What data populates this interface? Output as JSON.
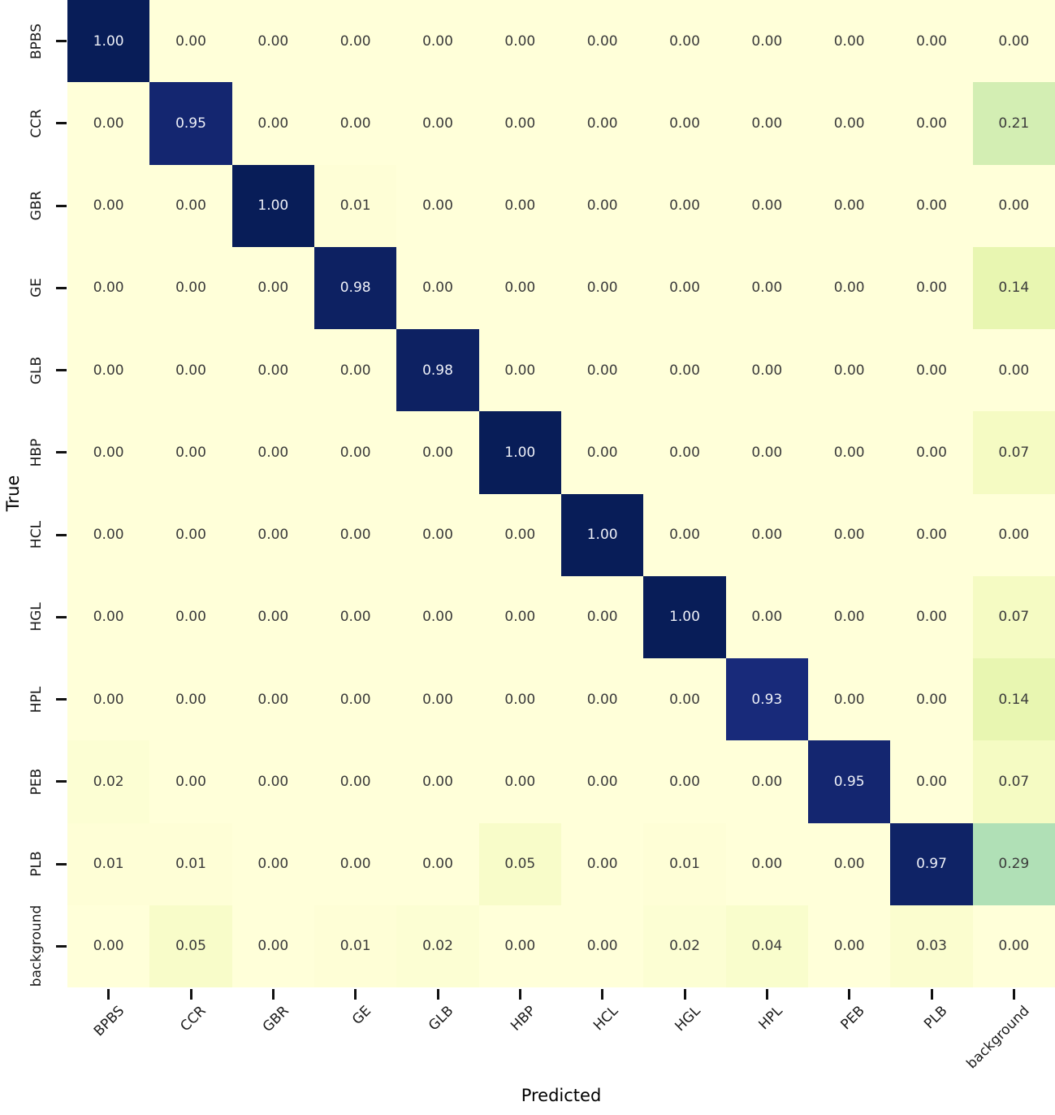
{
  "figure": {
    "kind": "confusion-matrix"
  },
  "chart_data": {
    "type": "heatmap",
    "title": "",
    "xlabel": "Predicted",
    "ylabel": "True",
    "x_categories": [
      "BPBS",
      "CCR",
      "GBR",
      "GE",
      "GLB",
      "HBP",
      "HCL",
      "HGL",
      "HPL",
      "PEB",
      "PLB",
      "background"
    ],
    "y_categories": [
      "BPBS",
      "CCR",
      "GBR",
      "GE",
      "GLB",
      "HBP",
      "HCL",
      "HGL",
      "HPL",
      "PEB",
      "PLB",
      "background"
    ],
    "matrix": [
      [
        1.0,
        0.0,
        0.0,
        0.0,
        0.0,
        0.0,
        0.0,
        0.0,
        0.0,
        0.0,
        0.0,
        0.0
      ],
      [
        0.0,
        0.95,
        0.0,
        0.0,
        0.0,
        0.0,
        0.0,
        0.0,
        0.0,
        0.0,
        0.0,
        0.21
      ],
      [
        0.0,
        0.0,
        1.0,
        0.01,
        0.0,
        0.0,
        0.0,
        0.0,
        0.0,
        0.0,
        0.0,
        0.0
      ],
      [
        0.0,
        0.0,
        0.0,
        0.98,
        0.0,
        0.0,
        0.0,
        0.0,
        0.0,
        0.0,
        0.0,
        0.14
      ],
      [
        0.0,
        0.0,
        0.0,
        0.0,
        0.98,
        0.0,
        0.0,
        0.0,
        0.0,
        0.0,
        0.0,
        0.0
      ],
      [
        0.0,
        0.0,
        0.0,
        0.0,
        0.0,
        1.0,
        0.0,
        0.0,
        0.0,
        0.0,
        0.0,
        0.07
      ],
      [
        0.0,
        0.0,
        0.0,
        0.0,
        0.0,
        0.0,
        1.0,
        0.0,
        0.0,
        0.0,
        0.0,
        0.0
      ],
      [
        0.0,
        0.0,
        0.0,
        0.0,
        0.0,
        0.0,
        0.0,
        1.0,
        0.0,
        0.0,
        0.0,
        0.07
      ],
      [
        0.0,
        0.0,
        0.0,
        0.0,
        0.0,
        0.0,
        0.0,
        0.0,
        0.93,
        0.0,
        0.0,
        0.14
      ],
      [
        0.02,
        0.0,
        0.0,
        0.0,
        0.0,
        0.0,
        0.0,
        0.0,
        0.0,
        0.95,
        0.0,
        0.07
      ],
      [
        0.01,
        0.01,
        0.0,
        0.0,
        0.0,
        0.05,
        0.0,
        0.01,
        0.0,
        0.0,
        0.97,
        0.29
      ],
      [
        0.0,
        0.05,
        0.0,
        0.01,
        0.02,
        0.0,
        0.0,
        0.02,
        0.04,
        0.0,
        0.03,
        0.0
      ]
    ],
    "value_decimals": 2,
    "vmin": 0,
    "vmax": 1,
    "colormap": "YlGnBu",
    "colormap_stops": [
      [
        0.0,
        [
          255,
          255,
          217
        ]
      ],
      [
        0.125,
        [
          237,
          248,
          177
        ]
      ],
      [
        0.25,
        [
          199,
          233,
          180
        ]
      ],
      [
        0.375,
        [
          127,
          205,
          187
        ]
      ],
      [
        0.5,
        [
          65,
          182,
          196
        ]
      ],
      [
        0.625,
        [
          29,
          145,
          192
        ]
      ],
      [
        0.75,
        [
          34,
          94,
          168
        ]
      ],
      [
        0.875,
        [
          37,
          52,
          148
        ]
      ],
      [
        1.0,
        [
          8,
          29,
          88
        ]
      ]
    ],
    "annotation_color_dark": "#3a3a3a",
    "annotation_color_light": "#eef0f7",
    "tick_color": "#111111",
    "label_color": "#1a1a1a",
    "legend": "none",
    "grid_on": false
  }
}
